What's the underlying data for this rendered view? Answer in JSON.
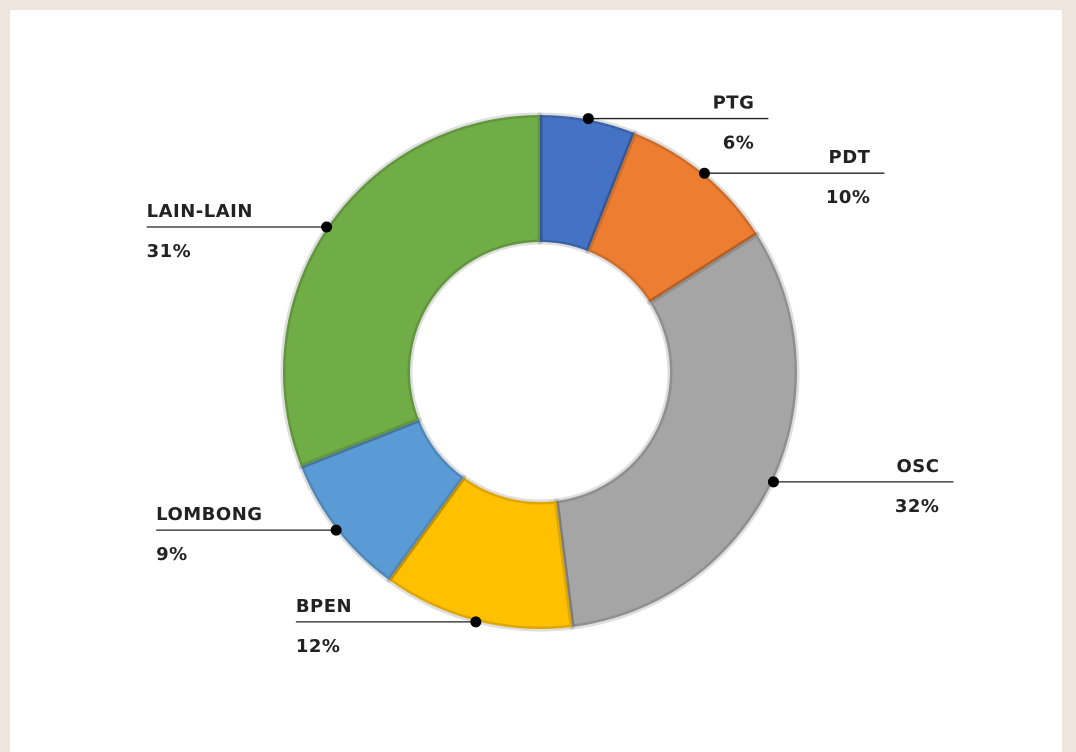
{
  "chart_data": {
    "type": "donut",
    "categories": [
      "PTG",
      "PDT",
      "OSC",
      "BPEN",
      "LOMBONG",
      "LAIN-LAIN"
    ],
    "values": [
      6,
      10,
      32,
      12,
      9,
      31
    ],
    "value_labels": [
      "6%",
      "10%",
      "32%",
      "12%",
      "9%",
      "31%"
    ],
    "colors": [
      "#4472c4",
      "#ed7d31",
      "#a5a5a5",
      "#ffc000",
      "#5b9bd5",
      "#70ad47"
    ]
  }
}
